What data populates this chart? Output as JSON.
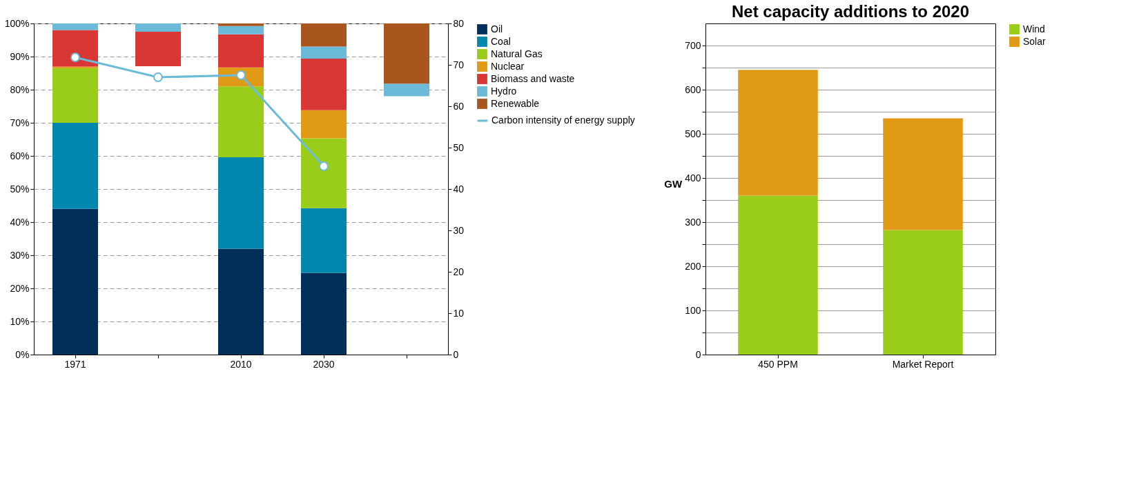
{
  "chart_data": [
    {
      "type": "bar",
      "stacked": true,
      "categories": [
        "1971",
        null,
        "2010",
        "2030",
        null
      ],
      "ylim": [
        0,
        100
      ],
      "yticks": [
        {
          "value": 0,
          "label": "0%"
        },
        {
          "value": 10,
          "label": "10%"
        },
        {
          "value": 20,
          "label": "20%"
        },
        {
          "value": 30,
          "label": "30%"
        },
        {
          "value": 40,
          "label": "40%"
        },
        {
          "value": 50,
          "label": "50%"
        },
        {
          "value": 60,
          "label": "60%"
        },
        {
          "value": 70,
          "label": "70%"
        },
        {
          "value": 80,
          "label": "80%"
        },
        {
          "value": 90,
          "label": "90%"
        },
        {
          "value": 100,
          "label": "100%"
        }
      ],
      "y2lim": [
        0,
        80
      ],
      "y2ticks": [
        0,
        10,
        20,
        30,
        40,
        50,
        60,
        70,
        80
      ],
      "grid": "y",
      "legend": "right",
      "series": [
        {
          "name": "Oil",
          "color": "#00305a",
          "values": [
            44,
            null,
            32,
            24.7,
            null
          ]
        },
        {
          "name": "Coal",
          "color": "#0087ae",
          "values": [
            26,
            null,
            27.6,
            19.5,
            null
          ]
        },
        {
          "name": "Natural Gas",
          "color": "#9acd19",
          "values": [
            16.5,
            null,
            21.4,
            21.1,
            null
          ]
        },
        {
          "name": "Nuclear",
          "color": "#e09a16",
          "values": [
            0.5,
            null,
            5.7,
            8.5,
            null
          ]
        },
        {
          "name": "Biomass and waste",
          "color": "#d93636",
          "values": [
            11,
            10.4,
            10,
            15.6,
            null
          ],
          "base": [
            null,
            87.1,
            null,
            null,
            null
          ]
        },
        {
          "name": "Hydro",
          "color": "#6bbbd8",
          "values": [
            2,
            2.5,
            2.5,
            3.6,
            3.8
          ],
          "base": [
            null,
            97.5,
            null,
            null,
            78
          ]
        },
        {
          "name": "Renewable",
          "color": "#a8561e",
          "values": [
            0,
            null,
            0.8,
            7,
            18.2
          ],
          "base": [
            null,
            null,
            null,
            null,
            81.8
          ]
        },
        {
          "name": "Carbon intensity of energy supply",
          "type": "line",
          "axis": "y2",
          "marker": "circle",
          "color": "#6bbbd8",
          "values": [
            71.8,
            67,
            67.5,
            45.5,
            null
          ]
        }
      ]
    },
    {
      "type": "bar",
      "stacked": true,
      "title": "Net capacity additions to 2020",
      "ylabel": "GW",
      "categories": [
        "450 PPM",
        "Market Report"
      ],
      "ylim": [
        0,
        750
      ],
      "yticks": [
        0,
        {
          "value": 50,
          "label": null
        },
        100,
        {
          "value": 150,
          "label": null
        },
        200,
        {
          "value": 250,
          "label": null
        },
        300,
        {
          "value": 350,
          "label": null
        },
        400,
        {
          "value": 450,
          "label": null
        },
        500,
        {
          "value": 550,
          "label": null
        },
        600,
        {
          "value": 650,
          "label": null
        },
        700
      ],
      "grid": "y",
      "legend": "right",
      "series": [
        {
          "name": "Wind",
          "color": "#9acd19",
          "values": [
            360,
            282
          ]
        },
        {
          "name": "Solar",
          "color": "#e09a16",
          "values": [
            285,
            253
          ]
        }
      ]
    }
  ]
}
